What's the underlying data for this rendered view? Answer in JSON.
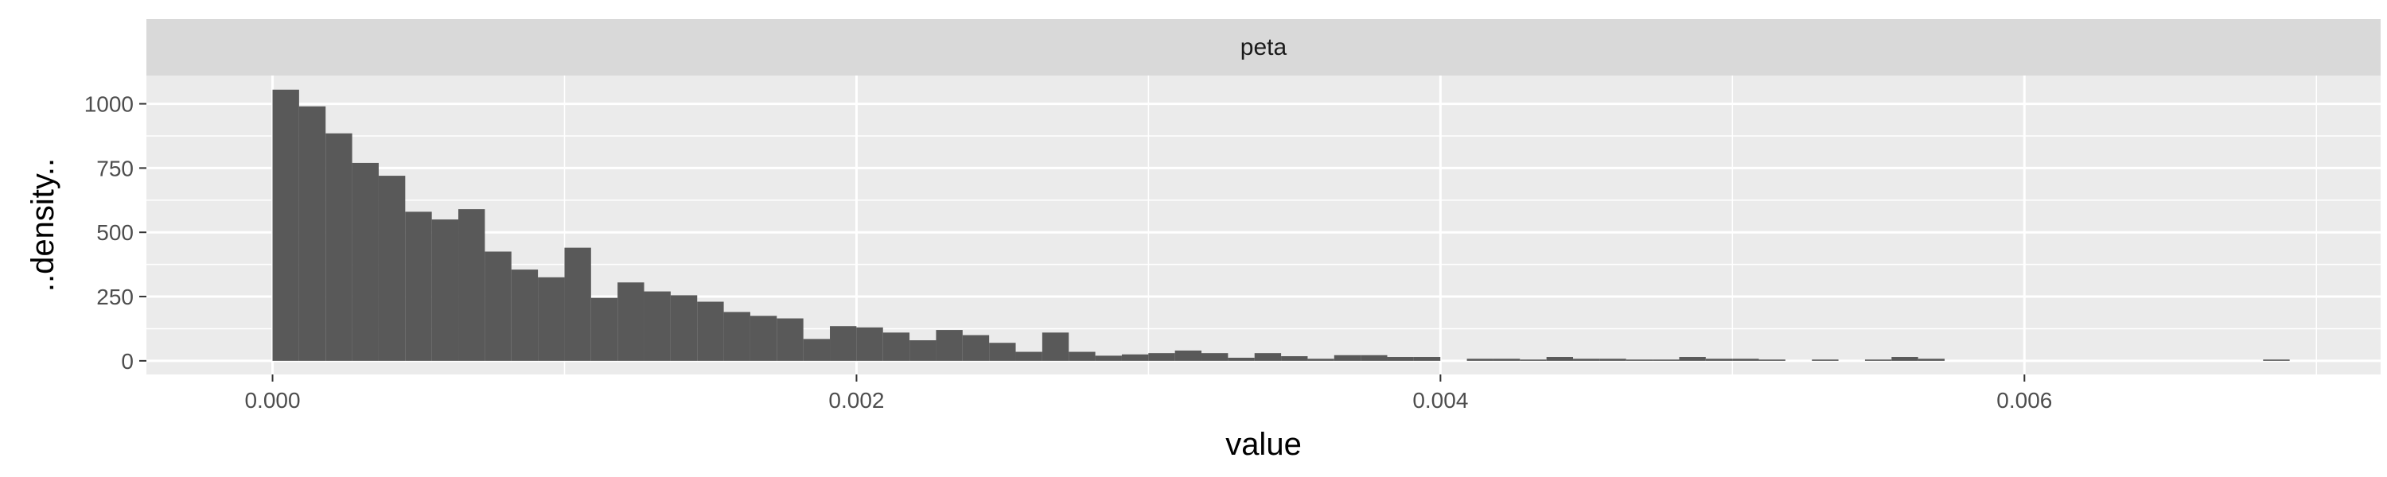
{
  "chart_data": {
    "type": "histogram",
    "facet": "peta",
    "xlabel": "value",
    "ylabel": "..density..",
    "xlim": [
      -0.000432,
      0.00722
    ],
    "ylim": [
      -53,
      1110
    ],
    "x_ticks": [
      0.0,
      0.002,
      0.004,
      0.006
    ],
    "x_tick_labels": [
      "0.000",
      "0.002",
      "0.004",
      "0.006"
    ],
    "y_ticks": [
      0,
      250,
      500,
      750,
      1000
    ],
    "y_tick_labels": [
      "0",
      "250",
      "500",
      "750",
      "1000"
    ],
    "bin_width": 9.09e-05,
    "bin_start": 0.0,
    "values": [
      1055,
      990,
      885,
      770,
      720,
      580,
      550,
      590,
      425,
      355,
      325,
      440,
      245,
      305,
      270,
      255,
      230,
      190,
      175,
      165,
      85,
      135,
      130,
      110,
      80,
      120,
      100,
      70,
      35,
      110,
      35,
      20,
      25,
      30,
      40,
      30,
      12,
      30,
      18,
      8,
      22,
      22,
      15,
      15,
      0,
      8,
      8,
      5,
      15,
      8,
      8,
      5,
      5,
      15,
      8,
      8,
      5,
      0,
      5,
      0,
      5,
      15,
      8,
      0,
      0,
      0,
      0,
      0,
      0,
      0,
      0,
      0,
      0,
      0,
      0,
      5
    ],
    "grid": true,
    "colors": {
      "panel_background": "#ebebeb",
      "strip_background": "#d9d9d9",
      "gridline": "#ffffff",
      "bar_fill": "#595959"
    }
  }
}
